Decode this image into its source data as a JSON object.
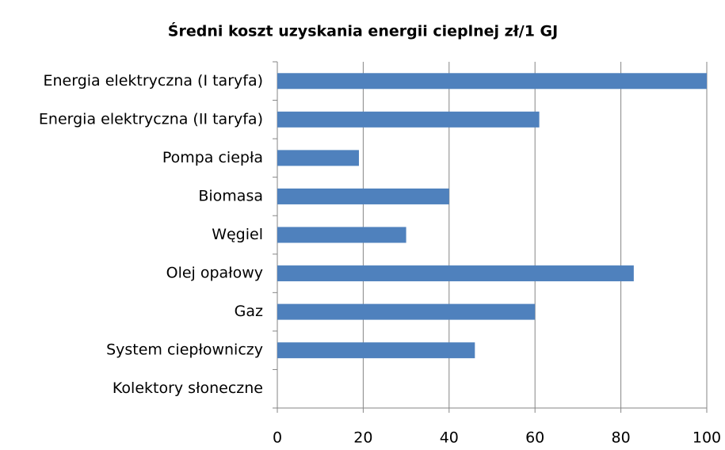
{
  "chart_data": {
    "type": "bar",
    "orientation": "horizontal",
    "title": "Średni koszt uzyskania energii cieplnej zł/1 GJ",
    "categories": [
      "Energia elektryczna (I taryfa)",
      "Energia elektryczna (II taryfa)",
      "Pompa ciepła",
      "Biomasa",
      "Węgiel",
      "Olej opałowy",
      "Gaz",
      "System ciepłowniczy",
      "Kolektory słoneczne"
    ],
    "values": [
      100,
      61,
      19,
      40,
      30,
      83,
      60,
      46,
      0
    ],
    "color": "#4f81bd",
    "xlim": [
      0,
      100
    ],
    "xticks": [
      0,
      20,
      40,
      60,
      80,
      100
    ],
    "grid": true
  }
}
